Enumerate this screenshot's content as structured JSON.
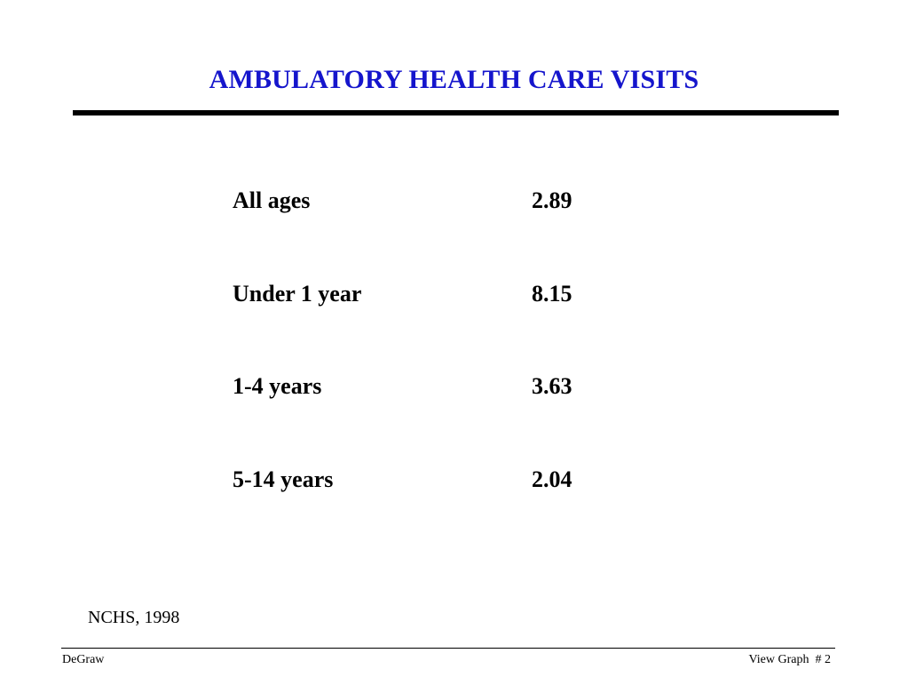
{
  "colors": {
    "title": "#1515CC",
    "text": "#000000",
    "rule": "#000000",
    "background": "#FFFFFF"
  },
  "slide": {
    "title": "AMBULATORY HEALTH CARE VISITS"
  },
  "table": {
    "rows": [
      {
        "label": "All ages",
        "value": "2.89"
      },
      {
        "label": "Under 1 year",
        "value": "8.15"
      },
      {
        "label": "1-4 years",
        "value": "3.63"
      },
      {
        "label": "5-14 years",
        "value": "2.04"
      }
    ]
  },
  "source": "NCHS, 1998",
  "footer": {
    "author": "DeGraw",
    "page_label": "View Graph  # 2"
  }
}
